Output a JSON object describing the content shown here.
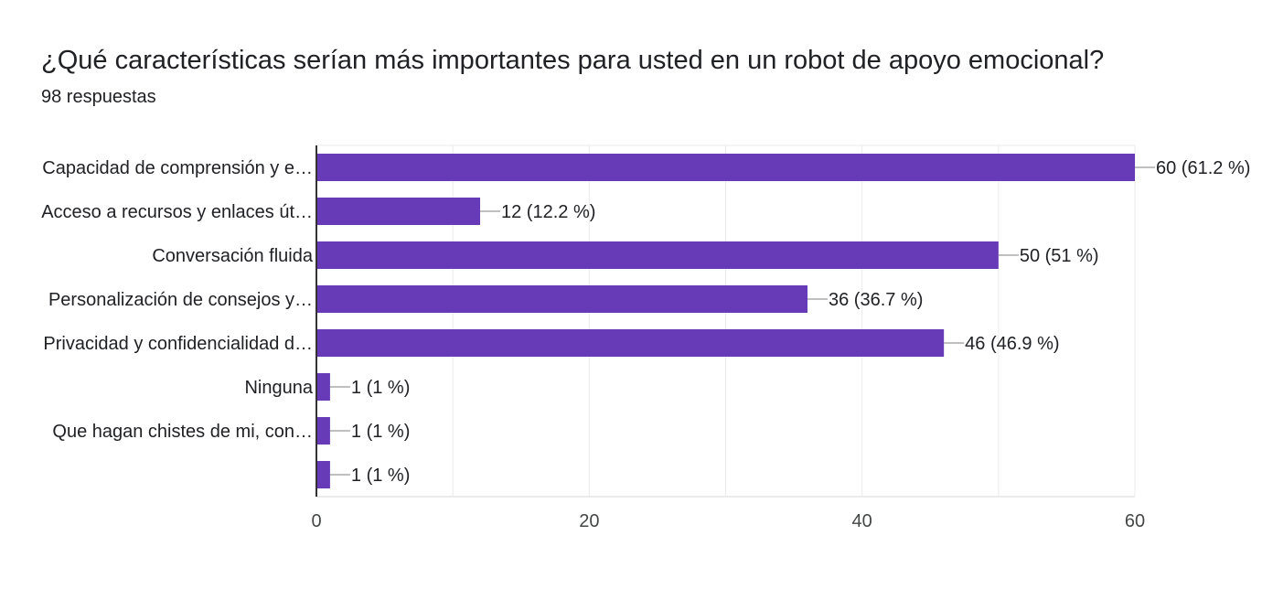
{
  "header": {
    "question": "¿Qué características serían más importantes para usted en un robot de apoyo emocional?",
    "responses": "98 respuestas"
  },
  "colors": {
    "bar": "#673ab7",
    "grid": "#ebebeb",
    "axis": "#333333",
    "leader": "#999999"
  },
  "chart_data": {
    "type": "bar",
    "orientation": "horizontal",
    "categories": [
      "Capacidad de comprensión y e…",
      "Acceso a recursos y enlaces út…",
      "Conversación fluida",
      "Personalización de consejos y…",
      "Privacidad y confidencialidad d…",
      "Ninguna",
      "Que hagan chistes de mi, con…",
      ""
    ],
    "values": [
      60,
      12,
      50,
      36,
      46,
      1,
      1,
      1
    ],
    "data_labels": [
      "60 (61.2 %)",
      "12 (12.2 %)",
      "50 (51 %)",
      "36 (36.7 %)",
      "46 (46.9 %)",
      "1 (1 %)",
      "1 (1 %)",
      "1 (1 %)"
    ],
    "xlim": [
      0,
      60
    ],
    "x_ticks": [
      0,
      20,
      40,
      60
    ],
    "grid": true
  }
}
